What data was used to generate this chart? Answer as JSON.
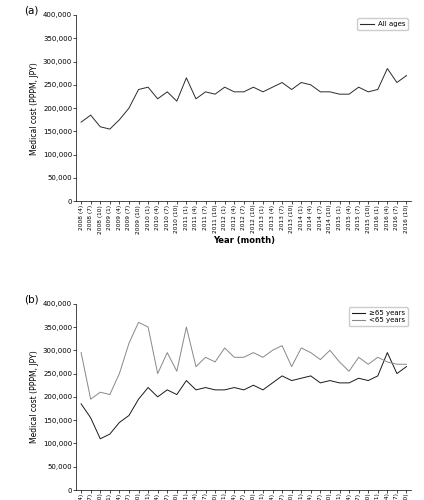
{
  "x_labels": [
    "2008 (4)",
    "2008 (7)",
    "2008 (10)",
    "2009 (1)",
    "2009 (4)",
    "2009 (7)",
    "2009 (10)",
    "2010 (1)",
    "2010 (4)",
    "2010 (7)",
    "2010 (10)",
    "2011 (1)",
    "2011 (4)",
    "2011 (7)",
    "2011 (10)",
    "2012 (1)",
    "2012 (4)",
    "2012 (7)",
    "2012 (10)",
    "2013 (1)",
    "2013 (4)",
    "2013 (7)",
    "2013 (10)",
    "2014 (1)",
    "2014 (4)",
    "2014 (7)",
    "2014 (10)",
    "2015 (1)",
    "2015 (4)",
    "2015 (7)",
    "2015 (10)",
    "2016 (1)",
    "2016 (4)",
    "2016 (7)",
    "2016 (10)"
  ],
  "all_ages": [
    170000,
    185000,
    160000,
    155000,
    175000,
    200000,
    240000,
    245000,
    220000,
    235000,
    215000,
    265000,
    220000,
    235000,
    230000,
    245000,
    235000,
    235000,
    245000,
    235000,
    245000,
    255000,
    240000,
    255000,
    250000,
    235000,
    235000,
    230000,
    230000,
    245000,
    235000,
    240000,
    285000,
    255000,
    270000
  ],
  "age_65plus": [
    185000,
    155000,
    110000,
    120000,
    145000,
    160000,
    195000,
    220000,
    200000,
    215000,
    205000,
    235000,
    215000,
    220000,
    215000,
    215000,
    220000,
    215000,
    225000,
    215000,
    230000,
    245000,
    235000,
    240000,
    245000,
    230000,
    235000,
    230000,
    230000,
    240000,
    235000,
    245000,
    295000,
    250000,
    265000
  ],
  "age_under65": [
    295000,
    195000,
    210000,
    205000,
    250000,
    315000,
    360000,
    350000,
    250000,
    295000,
    255000,
    350000,
    265000,
    285000,
    275000,
    305000,
    285000,
    285000,
    295000,
    285000,
    300000,
    310000,
    265000,
    305000,
    295000,
    280000,
    300000,
    275000,
    255000,
    285000,
    270000,
    285000,
    275000,
    270000,
    270000
  ],
  "ylim": [
    0,
    400000
  ],
  "yticks": [
    0,
    50000,
    100000,
    150000,
    200000,
    250000,
    300000,
    350000,
    400000
  ],
  "ylabel": "Medical cost (PPPM, JPY)",
  "xlabel": "Year (month)",
  "legend_a": [
    "All ages"
  ],
  "legend_b": [
    "≥65 years",
    "<65 years"
  ],
  "color_all": "#2b2b2b",
  "color_65plus": "#1a1a1a",
  "color_under65": "#888888",
  "label_a": "(a)",
  "label_b": "(b)"
}
